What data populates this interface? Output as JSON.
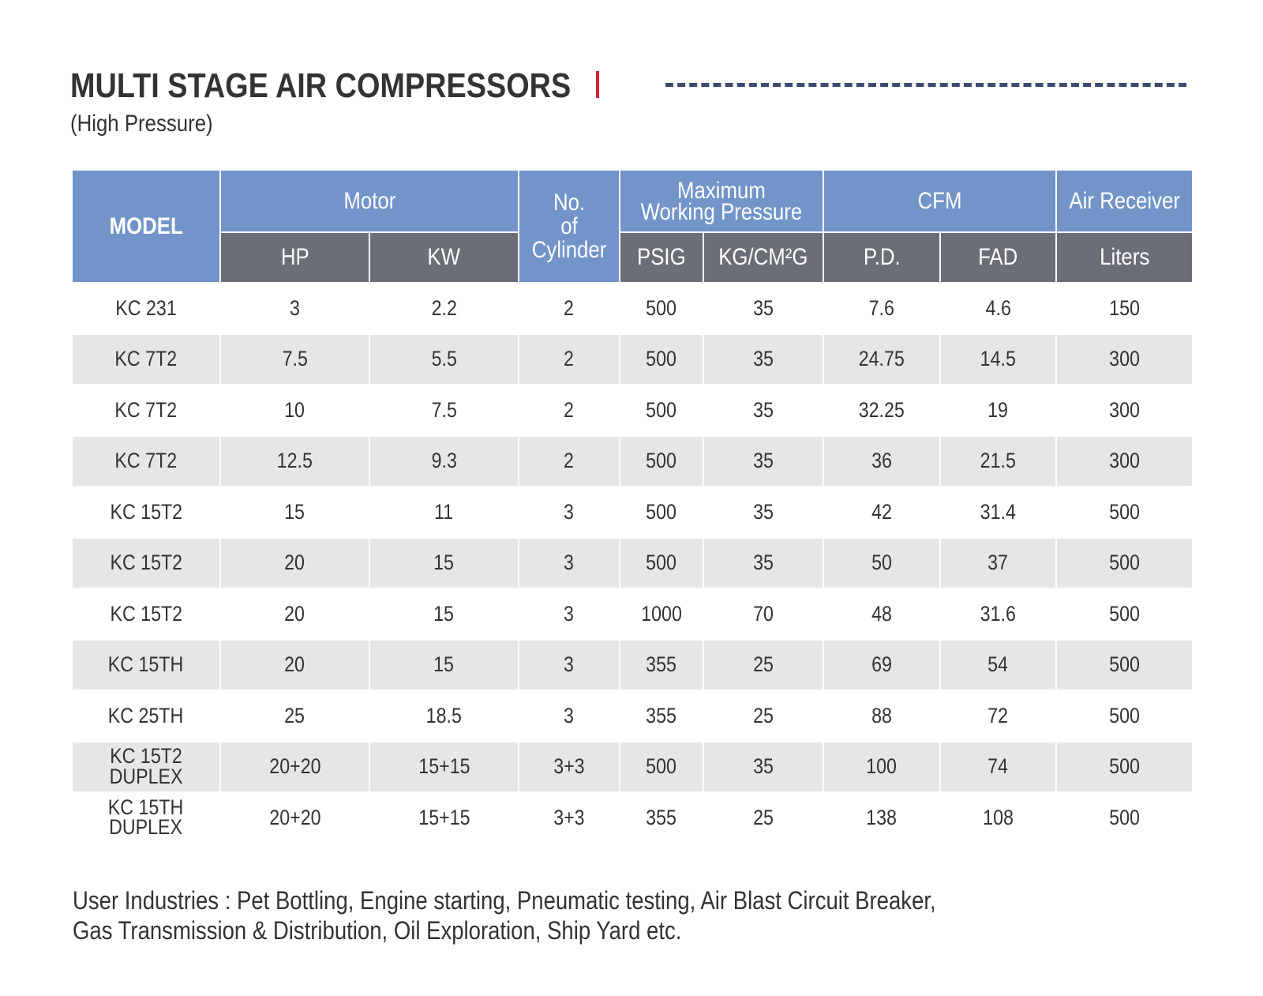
{
  "header": {
    "title": "MULTI STAGE AIR COMPRESSORS",
    "subtitle": "(High Pressure)"
  },
  "table": {
    "model_header": "MODEL",
    "groups": [
      {
        "label": "Motor",
        "columns": [
          "HP",
          "KW"
        ]
      },
      {
        "label": "No.\nof\nCylinder",
        "columns": []
      },
      {
        "label": "Maximum\nWorking Pressure",
        "columns": [
          "PSIG",
          "KG/CM²G"
        ]
      },
      {
        "label": "CFM",
        "columns": [
          "P.D.",
          "FAD"
        ]
      },
      {
        "label": "Air Receiver",
        "columns": [
          "Liters"
        ]
      }
    ],
    "rows": [
      [
        "KC 231",
        "3",
        "2.2",
        "2",
        "500",
        "35",
        "7.6",
        "4.6",
        "150"
      ],
      [
        "KC 7T2",
        "7.5",
        "5.5",
        "2",
        "500",
        "35",
        "24.75",
        "14.5",
        "300"
      ],
      [
        "KC 7T2",
        "10",
        "7.5",
        "2",
        "500",
        "35",
        "32.25",
        "19",
        "300"
      ],
      [
        "KC 7T2",
        "12.5",
        "9.3",
        "2",
        "500",
        "35",
        "36",
        "21.5",
        "300"
      ],
      [
        "KC 15T2",
        "15",
        "11",
        "3",
        "500",
        "35",
        "42",
        "31.4",
        "500"
      ],
      [
        "KC 15T2",
        "20",
        "15",
        "3",
        "500",
        "35",
        "50",
        "37",
        "500"
      ],
      [
        "KC 15T2",
        "20",
        "15",
        "3",
        "1000",
        "70",
        "48",
        "31.6",
        "500"
      ],
      [
        "KC 15TH",
        "20",
        "15",
        "3",
        "355",
        "25",
        "69",
        "54",
        "500"
      ],
      [
        "KC 25TH",
        "25",
        "18.5",
        "3",
        "355",
        "25",
        "88",
        "72",
        "500"
      ],
      [
        "KC 15T2\nDUPLEX",
        "20+20",
        "15+15",
        "3+3",
        "500",
        "35",
        "100",
        "74",
        "500"
      ],
      [
        "KC 15TH\nDUPLEX",
        "20+20",
        "15+15",
        "3+3",
        "355",
        "25",
        "138",
        "108",
        "500"
      ]
    ]
  },
  "footer": {
    "lines": [
      "User Industries : Pet Bottling, Engine starting, Pneumatic testing, Air Blast Circuit Breaker,",
      "Gas Transmission & Distribution, Oil Exploration, Ship Yard etc."
    ]
  }
}
